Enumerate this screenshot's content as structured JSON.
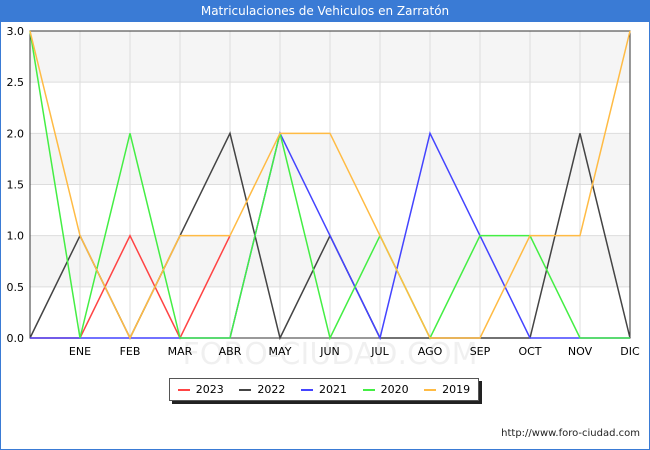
{
  "title": "Matriculaciones de Vehiculos en Zarratón",
  "source": "http://www.foro-ciudad.com",
  "watermark": "FORO-CIUDAD.COM",
  "chart_data": {
    "type": "line",
    "x_labels": [
      "",
      "ENE",
      "FEB",
      "MAR",
      "ABR",
      "MAY",
      "JUN",
      "JUL",
      "AGO",
      "SEP",
      "OCT",
      "NOV",
      "DIC"
    ],
    "ylim": [
      0,
      3
    ],
    "y_ticks": [
      "0.0",
      "0.5",
      "1.0",
      "1.5",
      "2.0",
      "2.5",
      "3.0"
    ],
    "grid": true,
    "legend_position": "bottom",
    "series": [
      {
        "name": "2023",
        "color": "#ff4444",
        "values": [
          0,
          0,
          1,
          0,
          1,
          null,
          null,
          null,
          null,
          null,
          null,
          null,
          null
        ]
      },
      {
        "name": "2022",
        "color": "#444444",
        "values": [
          0,
          1,
          0,
          1,
          2,
          0,
          1,
          0,
          0,
          0,
          0,
          2,
          0
        ]
      },
      {
        "name": "2021",
        "color": "#4444ff",
        "values": [
          0,
          0,
          0,
          0,
          0,
          2,
          1,
          0,
          2,
          1,
          0,
          0,
          0
        ]
      },
      {
        "name": "2020",
        "color": "#44ee44",
        "values": [
          3,
          0,
          2,
          0,
          0,
          2,
          0,
          1,
          0,
          1,
          1,
          0,
          0
        ]
      },
      {
        "name": "2019",
        "color": "#ffbb44",
        "values": [
          3,
          1,
          0,
          1,
          1,
          2,
          2,
          1,
          0,
          0,
          1,
          1,
          3
        ]
      }
    ]
  }
}
